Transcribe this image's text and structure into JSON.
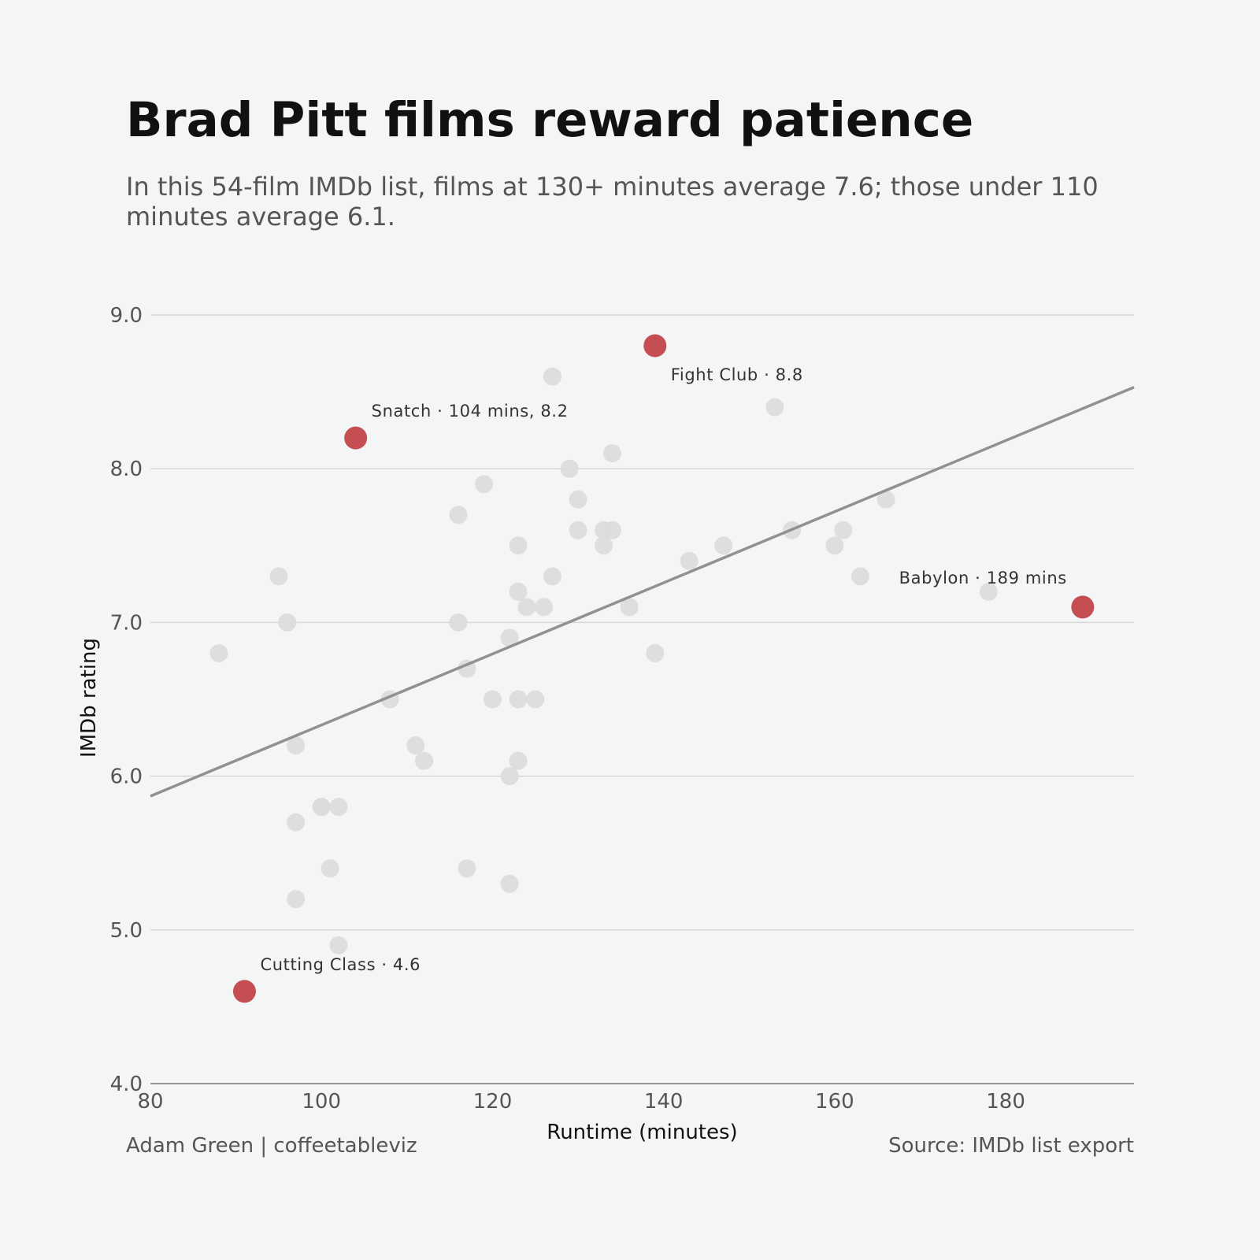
{
  "header": {
    "title": "Brad Pitt films reward patience",
    "subtitle": "In this 54-film IMDb list, films at 130+ minutes average 7.6; those under 110 minutes average 6.1."
  },
  "footer": {
    "credit": "Adam Green | coffeetableviz",
    "source": "Source: IMDb list export"
  },
  "colors": {
    "background": "#f4f5f7",
    "point": "#dcdcdc",
    "highlight": "#c44e52",
    "trend": "#919191",
    "grid": "#d6d6d6",
    "axis": "#9a9a9a"
  },
  "chart_data": {
    "type": "scatter",
    "xlabel": "Runtime (minutes)",
    "ylabel": "IMDb rating",
    "xlim": [
      80,
      195
    ],
    "ylim": [
      4.0,
      9.0
    ],
    "xticks": [
      "80",
      "100",
      "120",
      "140",
      "160",
      "180"
    ],
    "yticks": [
      "4.0",
      "5.0",
      "6.0",
      "7.0",
      "8.0",
      "9.0"
    ],
    "grid": "horizontal",
    "trend_line": {
      "x": [
        80,
        195
      ],
      "y": [
        5.87,
        8.53
      ]
    },
    "points": [
      {
        "x": 88,
        "y": 6.8
      },
      {
        "x": 95,
        "y": 7.3
      },
      {
        "x": 96,
        "y": 7.0
      },
      {
        "x": 97,
        "y": 6.2
      },
      {
        "x": 97,
        "y": 5.7
      },
      {
        "x": 97,
        "y": 5.2
      },
      {
        "x": 100,
        "y": 5.8
      },
      {
        "x": 100,
        "y": 5.8
      },
      {
        "x": 101,
        "y": 5.4
      },
      {
        "x": 102,
        "y": 5.8
      },
      {
        "x": 102,
        "y": 4.9
      },
      {
        "x": 108,
        "y": 6.5
      },
      {
        "x": 111,
        "y": 6.2
      },
      {
        "x": 112,
        "y": 6.1
      },
      {
        "x": 116,
        "y": 7.7
      },
      {
        "x": 116,
        "y": 7.0
      },
      {
        "x": 117,
        "y": 6.7
      },
      {
        "x": 117,
        "y": 5.4
      },
      {
        "x": 119,
        "y": 7.9
      },
      {
        "x": 120,
        "y": 6.5
      },
      {
        "x": 122,
        "y": 6.9
      },
      {
        "x": 122,
        "y": 6.0
      },
      {
        "x": 122,
        "y": 5.3
      },
      {
        "x": 123,
        "y": 7.5
      },
      {
        "x": 123,
        "y": 7.2
      },
      {
        "x": 123,
        "y": 6.5
      },
      {
        "x": 123,
        "y": 6.1
      },
      {
        "x": 124,
        "y": 7.1
      },
      {
        "x": 125,
        "y": 6.5
      },
      {
        "x": 126,
        "y": 7.1
      },
      {
        "x": 127,
        "y": 8.6
      },
      {
        "x": 127,
        "y": 7.3
      },
      {
        "x": 129,
        "y": 8.0
      },
      {
        "x": 130,
        "y": 7.8
      },
      {
        "x": 130,
        "y": 7.6
      },
      {
        "x": 133,
        "y": 7.6
      },
      {
        "x": 133,
        "y": 7.5
      },
      {
        "x": 134,
        "y": 8.1
      },
      {
        "x": 134,
        "y": 7.6
      },
      {
        "x": 136,
        "y": 7.1
      },
      {
        "x": 139,
        "y": 6.8
      },
      {
        "x": 143,
        "y": 7.4
      },
      {
        "x": 147,
        "y": 7.5
      },
      {
        "x": 153,
        "y": 8.4
      },
      {
        "x": 155,
        "y": 7.6
      },
      {
        "x": 160,
        "y": 7.5
      },
      {
        "x": 161,
        "y": 7.6
      },
      {
        "x": 163,
        "y": 7.3
      },
      {
        "x": 166,
        "y": 7.8
      },
      {
        "x": 178,
        "y": 7.2
      }
    ],
    "highlights": [
      {
        "x": 139,
        "y": 8.8,
        "label": "Fight Club · 8.8",
        "anchor": "start"
      },
      {
        "x": 104,
        "y": 8.2,
        "label": "Snatch · 104 mins, 8.2",
        "anchor": "start"
      },
      {
        "x": 189,
        "y": 7.1,
        "label": "Babylon · 189 mins",
        "anchor": "end"
      },
      {
        "x": 91,
        "y": 4.6,
        "label": "Cutting Class · 4.6",
        "anchor": "start"
      }
    ]
  }
}
